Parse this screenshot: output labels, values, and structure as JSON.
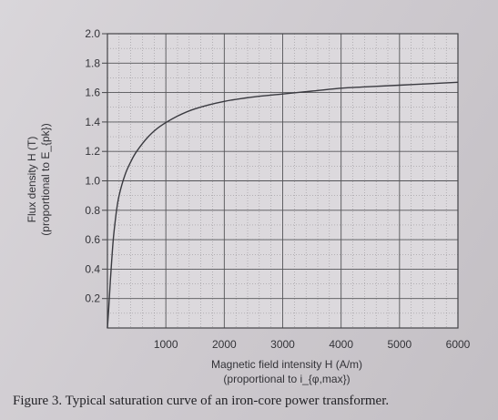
{
  "chart_data": {
    "type": "line",
    "xlabel": "Magnetic field intensity H (A/m)",
    "xlabel_note": "(proportional to i_{φ,max})",
    "ylabel": "Flux density H (T)",
    "ylabel_note": "(proportional to E_{pk})",
    "xlim": [
      0,
      6000
    ],
    "ylim": [
      0,
      2.0
    ],
    "xticks": [
      1000,
      2000,
      3000,
      4000,
      5000,
      6000
    ],
    "yticks": [
      0.2,
      0.4,
      0.6,
      0.8,
      1.0,
      1.2,
      1.4,
      1.6,
      1.8,
      2.0
    ],
    "ytick_labels": [
      "0.2",
      "0.4",
      "0.6",
      "0.8",
      "1.0",
      "1.2",
      "1.4",
      "1.6",
      "1.8",
      "2.0"
    ],
    "grid": true,
    "series": [
      {
        "x": [
          0,
          20,
          50,
          100,
          150,
          200,
          300,
          400,
          500,
          700,
          900,
          1200,
          1500,
          2000,
          2500,
          3000,
          3500,
          4000,
          4500,
          5000,
          5500,
          6000
        ],
        "y": [
          0.0,
          0.12,
          0.32,
          0.6,
          0.78,
          0.9,
          1.04,
          1.13,
          1.2,
          1.3,
          1.37,
          1.44,
          1.49,
          1.54,
          1.57,
          1.59,
          1.61,
          1.63,
          1.64,
          1.65,
          1.66,
          1.67
        ]
      }
    ]
  },
  "caption": "Figure 3. Typical saturation curve of an iron-core power transformer.",
  "colors": {
    "curve": "#3a3a40",
    "grid": "#555558",
    "axis": "#444448"
  }
}
